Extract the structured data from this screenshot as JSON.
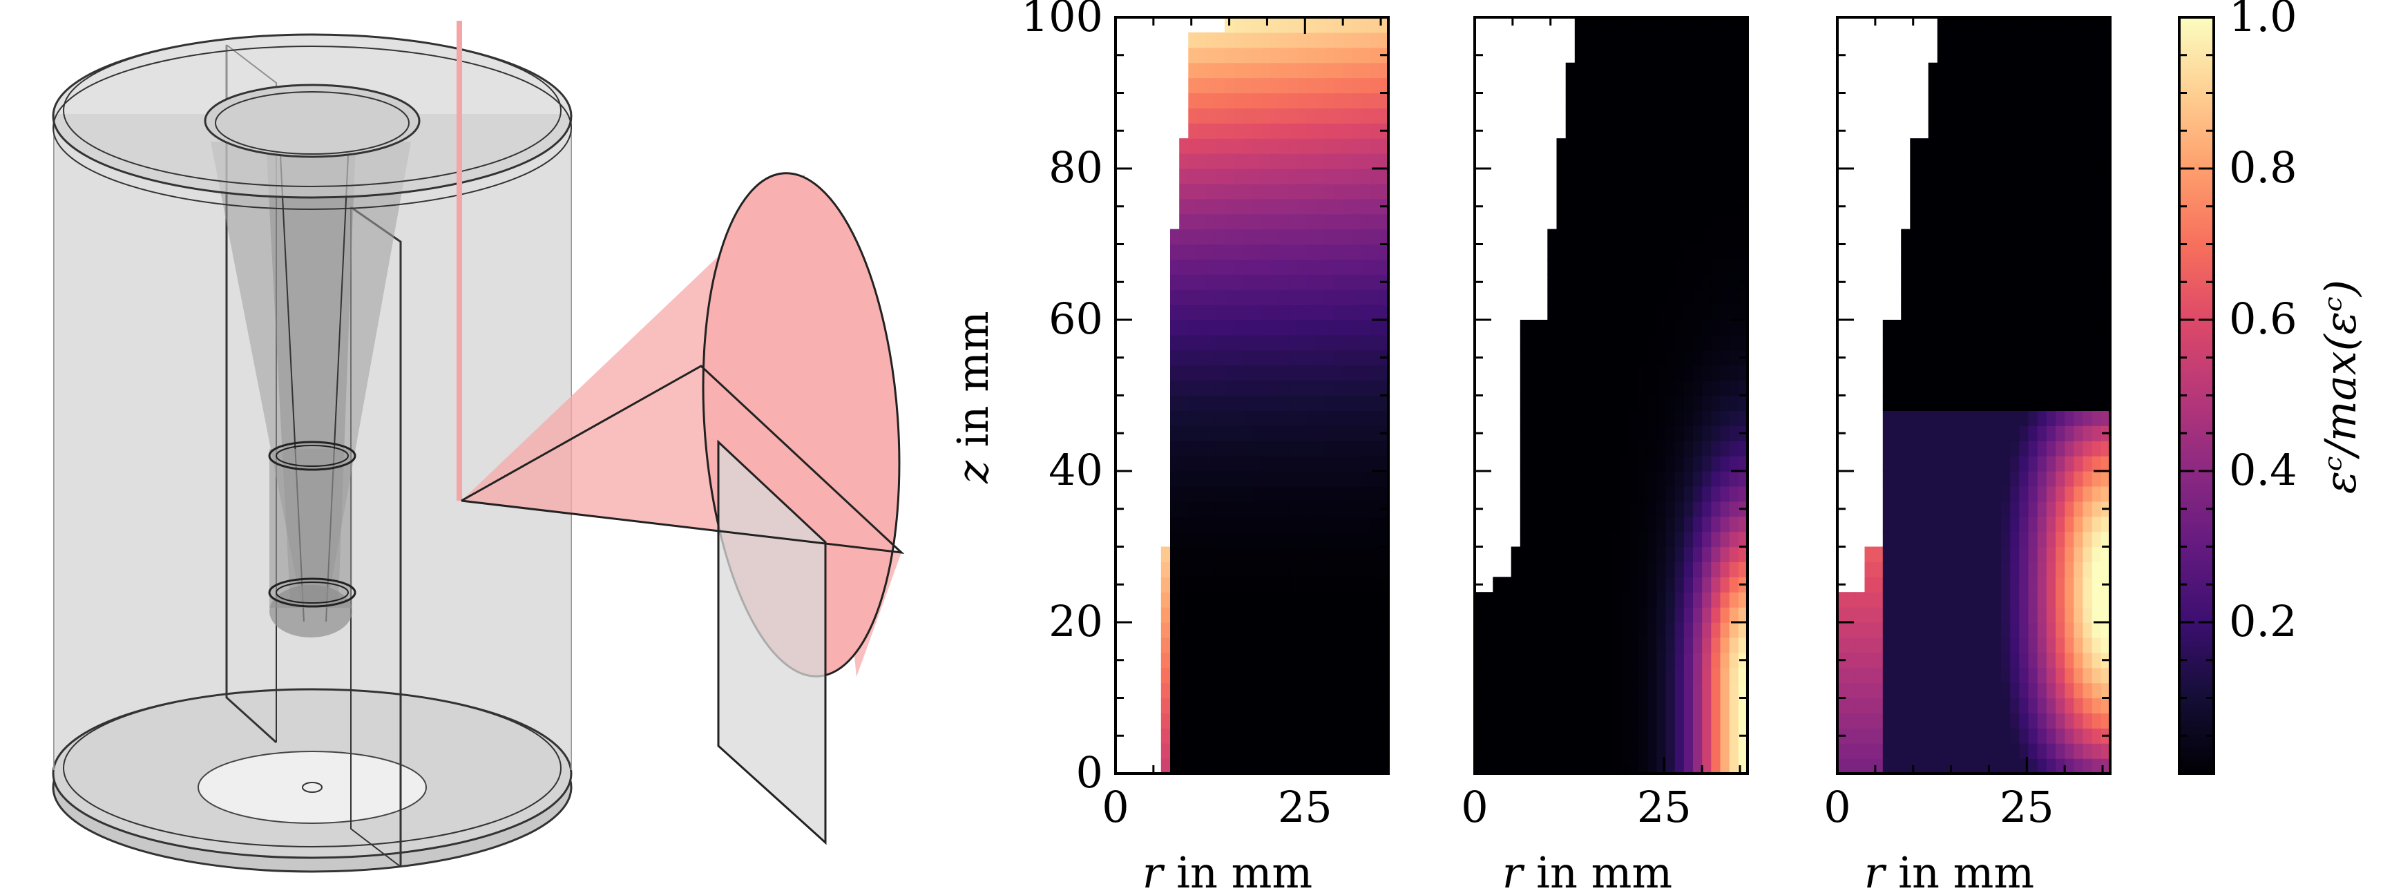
{
  "chart_data": {
    "type": "heatmap",
    "x_label_var": "r",
    "x_label_unit": " in mm",
    "y_label_var": "z",
    "y_label_unit": " in mm",
    "xlim": [
      0,
      36
    ],
    "ylim": [
      0,
      100
    ],
    "x_ticks": [
      0,
      25
    ],
    "y_ticks": [
      0,
      20,
      40,
      60,
      80,
      100
    ],
    "colorbar": {
      "label": "εᶜ/max(εᶜ)",
      "range": [
        0,
        1
      ],
      "ticks": [
        0.2,
        0.4,
        0.6,
        0.8,
        1.0
      ],
      "tick_labels": [
        "0.2",
        "0.4",
        "0.6",
        "0.8",
        "1.0"
      ],
      "colormap": [
        "#000004",
        "#140e36",
        "#3b0f70",
        "#641a80",
        "#8c2981",
        "#b73779",
        "#de4968",
        "#f7705c",
        "#fe9f6d",
        "#fecf92",
        "#fcfdbf"
      ]
    },
    "cell_size": {
      "dr": 1.2,
      "dz": 2
    },
    "panels": [
      {
        "name": "panel-1",
        "boundary_r": [
          [
            0,
            6
          ],
          [
            24,
            6
          ],
          [
            30,
            7
          ],
          [
            60,
            7
          ],
          [
            72,
            8
          ],
          [
            84,
            9
          ],
          [
            98,
            14
          ]
        ],
        "field": "cone",
        "description": "field high near top, decays downward; small hot region near bottom-left"
      },
      {
        "name": "panel-2",
        "boundary_r": [
          [
            0,
            0
          ],
          [
            24,
            2
          ],
          [
            26,
            4
          ],
          [
            30,
            6
          ],
          [
            60,
            9
          ],
          [
            72,
            10
          ],
          [
            84,
            11
          ],
          [
            94,
            12
          ],
          [
            100,
            14
          ]
        ],
        "field": "corner",
        "description": "field concentrated at outer radius, low z"
      },
      {
        "name": "panel-3",
        "boundary_r": [
          [
            0,
            0
          ],
          [
            24,
            3
          ],
          [
            30,
            6
          ],
          [
            60,
            8
          ],
          [
            72,
            9
          ],
          [
            84,
            11
          ],
          [
            94,
            12
          ],
          [
            100,
            14
          ]
        ],
        "field": "side",
        "description": "field at outer radius, z below ~48 mm"
      }
    ]
  }
}
